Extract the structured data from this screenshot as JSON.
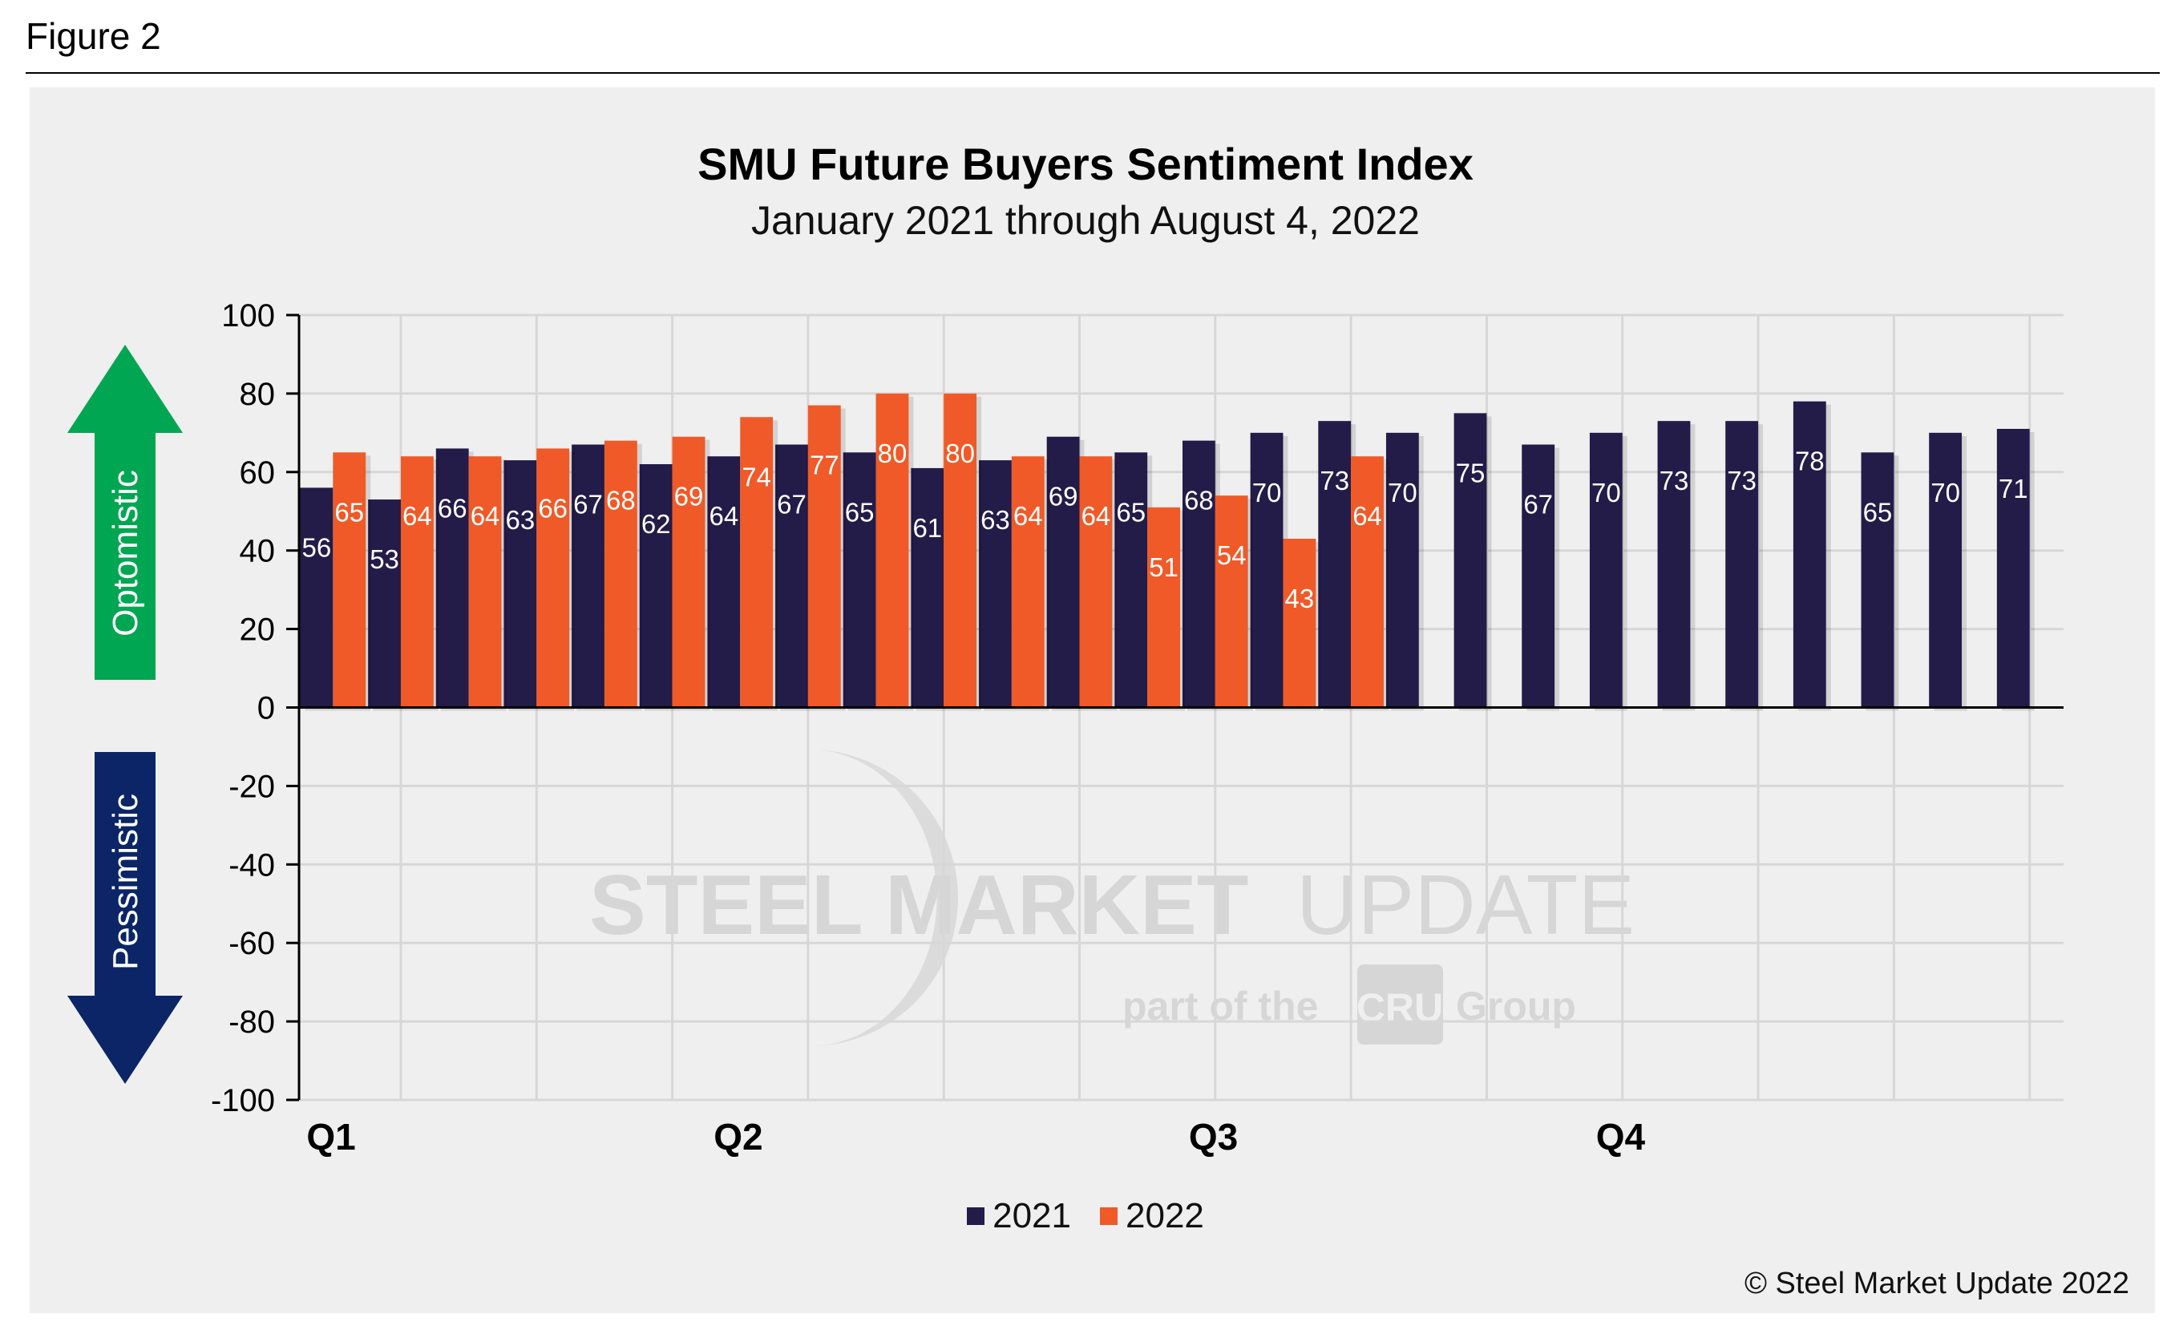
{
  "figure_label": "Figure 2",
  "copyright": "© Steel Market Update 2022",
  "watermark": {
    "main_bold": "STEEL MARKET",
    "main_light": "UPDATE",
    "sub_left": "part of the",
    "sub_logo": "CRU",
    "sub_right": "Group"
  },
  "arrows": {
    "up_label": "Optomistic",
    "down_label": "Pessimistic"
  },
  "colors": {
    "series_2021": "#231b48",
    "series_2022": "#ef5a28",
    "arrow_up": "#00a651",
    "arrow_down": "#0b2566",
    "panel": "#efefef"
  },
  "chart_data": {
    "type": "bar",
    "title": "SMU Future Buyers Sentiment Index",
    "subtitle": "January 2021 through August 4, 2022",
    "ylim": [
      -100,
      100
    ],
    "yticks": [
      100,
      80,
      60,
      40,
      20,
      0,
      -20,
      -40,
      -60,
      -80,
      -100
    ],
    "grid": true,
    "legend_position": "bottom-center",
    "quarter_labels": [
      "Q1",
      "Q2",
      "Q3",
      "Q4"
    ],
    "series": [
      {
        "name": "2021",
        "values": [
          56,
          53,
          66,
          63,
          67,
          62,
          64,
          67,
          65,
          61,
          63,
          69,
          65,
          68,
          70,
          73,
          70,
          75,
          67,
          70,
          73,
          73,
          78,
          65,
          70,
          71
        ]
      },
      {
        "name": "2022",
        "values": [
          65,
          64,
          64,
          66,
          68,
          69,
          74,
          77,
          80,
          80,
          64,
          64,
          51,
          54,
          43,
          64
        ]
      }
    ]
  }
}
